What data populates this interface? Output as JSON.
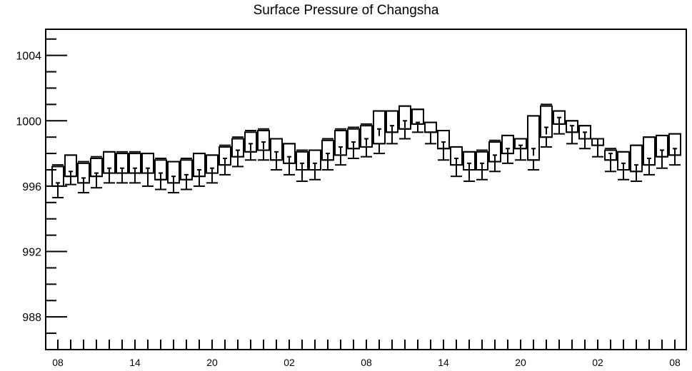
{
  "chart_data": {
    "type": "box",
    "title": "Surface Pressure of Changsha",
    "xlabel": "",
    "ylabel": "",
    "ylim": [
      986.0,
      1005.6
    ],
    "y_ticks": [
      988,
      992,
      996,
      1000,
      1004
    ],
    "x_tick_labels": [
      "08",
      "14",
      "20",
      "02",
      "08",
      "14",
      "20",
      "02",
      "08"
    ],
    "x_tick_label_hours": [
      0,
      6,
      12,
      18,
      24,
      30,
      36,
      42,
      48
    ],
    "grid": false,
    "legend": "none",
    "series": [
      {
        "hours": [
          0,
          1,
          2,
          3,
          4,
          5,
          6,
          7,
          8,
          9,
          10,
          11,
          12,
          13,
          14,
          15,
          16,
          17,
          18,
          19,
          20,
          21,
          22,
          23,
          24,
          25,
          26,
          27,
          28,
          29,
          30,
          31,
          32,
          33,
          34,
          35,
          36,
          37,
          38,
          39,
          40,
          41,
          42,
          43,
          44,
          45,
          46,
          47,
          48
        ],
        "min": [
          995.3,
          996.1,
          995.6,
          995.9,
          996.2,
          996.2,
          996.2,
          996.0,
          995.8,
          995.6,
          995.8,
          996.0,
          996.2,
          996.7,
          997.2,
          997.6,
          997.6,
          997.0,
          996.7,
          996.3,
          996.4,
          997.0,
          997.3,
          997.7,
          997.8,
          998.0,
          998.6,
          998.9,
          999.3,
          998.6,
          997.6,
          996.6,
          996.3,
          996.4,
          996.9,
          997.4,
          997.6,
          997.0,
          998.4,
          999.2,
          998.6,
          998.3,
          997.8,
          996.9,
          996.4,
          996.3,
          996.7,
          997.1,
          997.3
        ],
        "q1": [
          996.0,
          996.6,
          996.2,
          996.6,
          996.8,
          996.8,
          996.8,
          996.8,
          996.4,
          996.2,
          996.4,
          996.6,
          996.8,
          997.3,
          997.8,
          998.1,
          998.2,
          997.6,
          997.4,
          997.0,
          997.0,
          997.6,
          997.9,
          998.3,
          998.4,
          998.6,
          999.3,
          999.5,
          999.8,
          999.3,
          998.3,
          997.3,
          997.0,
          997.0,
          997.5,
          998.0,
          998.3,
          997.6,
          999.0,
          999.8,
          999.3,
          998.9,
          998.5,
          997.6,
          997.0,
          996.9,
          997.3,
          997.8,
          997.9
        ],
        "median": [
          996.0,
          996.6,
          996.2,
          996.6,
          996.8,
          996.8,
          996.8,
          996.8,
          996.4,
          996.2,
          996.4,
          996.6,
          996.8,
          997.3,
          997.8,
          998.1,
          998.2,
          997.6,
          997.4,
          997.0,
          997.0,
          997.6,
          997.9,
          998.3,
          998.4,
          998.6,
          999.3,
          999.5,
          999.8,
          999.3,
          998.3,
          997.3,
          997.0,
          997.0,
          997.5,
          998.0,
          998.3,
          997.6,
          999.0,
          999.8,
          999.3,
          998.9,
          998.5,
          997.6,
          997.0,
          996.9,
          997.3,
          997.8,
          997.9
        ],
        "q3": [
          997.2,
          997.9,
          997.4,
          997.7,
          998.1,
          998.0,
          998.0,
          998.0,
          997.6,
          997.5,
          997.6,
          998.0,
          997.9,
          998.4,
          998.9,
          999.3,
          999.4,
          998.9,
          998.6,
          998.1,
          998.2,
          998.8,
          999.4,
          999.5,
          999.7,
          1000.6,
          1000.6,
          1000.9,
          1000.7,
          999.9,
          999.4,
          998.4,
          998.1,
          998.1,
          998.7,
          999.1,
          998.9,
          1000.3,
          1000.9,
          1000.6,
          1000.0,
          999.7,
          998.9,
          998.2,
          998.1,
          998.5,
          999.0,
          999.1,
          999.2
        ],
        "max": [
          997.3,
          997.9,
          997.5,
          997.8,
          998.1,
          998.1,
          998.1,
          998.0,
          997.7,
          997.5,
          997.7,
          998.0,
          997.9,
          998.5,
          999.0,
          999.4,
          999.5,
          998.9,
          998.6,
          998.2,
          998.2,
          998.9,
          999.5,
          999.6,
          999.8,
          1000.6,
          1000.6,
          1000.9,
          1000.7,
          999.9,
          999.4,
          998.4,
          998.1,
          998.2,
          998.8,
          999.1,
          998.9,
          1000.3,
          1001.0,
          1000.6,
          1000.0,
          999.7,
          998.9,
          998.3,
          998.1,
          998.5,
          999.0,
          999.1,
          999.2
        ],
        "inner_marker": [
          996.2,
          996.9,
          996.5,
          996.8,
          997.1,
          997.1,
          997.1,
          997.1,
          996.8,
          996.6,
          996.7,
          997.0,
          997.1,
          997.7,
          998.2,
          998.6,
          998.7,
          998.1,
          997.8,
          997.4,
          997.4,
          998.0,
          998.4,
          998.7,
          998.9,
          999.5,
          999.7,
          1000.0,
          999.9,
          999.3,
          998.7,
          997.7,
          997.4,
          997.4,
          997.9,
          998.3,
          998.5,
          998.3,
          999.6,
          1000.2,
          999.7,
          999.3,
          998.9,
          998.0,
          997.4,
          997.3,
          997.7,
          998.2,
          998.3
        ]
      }
    ]
  }
}
